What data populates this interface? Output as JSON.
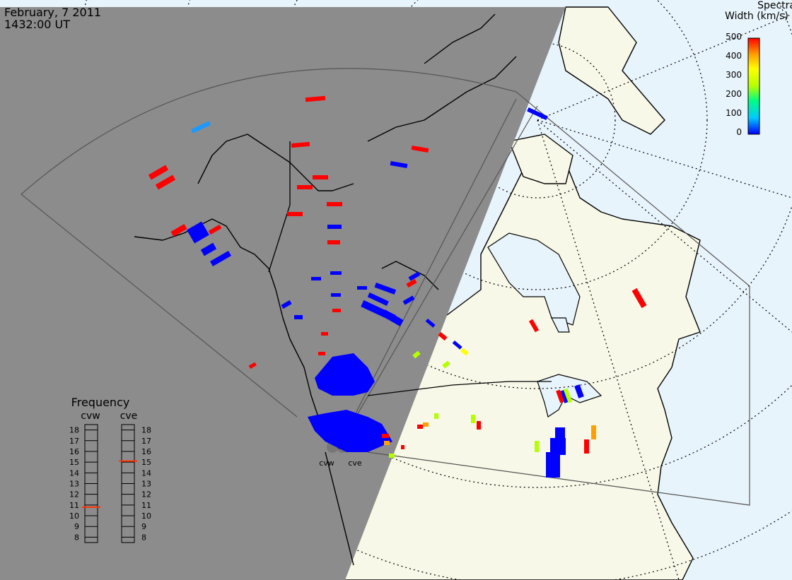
{
  "header": {
    "date": "February, 7 2011",
    "time": "1432:00 UT"
  },
  "colorbar": {
    "title_line1": "Spectral",
    "title_line2": "Width (km/s)",
    "ticks": [
      "500",
      "400",
      "300",
      "200",
      "100",
      "0"
    ],
    "colors": [
      "#0000ff",
      "#00c8ff",
      "#00ff80",
      "#b4ff00",
      "#ffff00",
      "#ffa000",
      "#ff0000"
    ]
  },
  "frequency_panel": {
    "title": "Frequency",
    "left_label": "cvw",
    "right_label": "cve",
    "ticks": [
      "18",
      "17",
      "16",
      "15",
      "14",
      "13",
      "12",
      "11",
      "10",
      "9",
      "8"
    ],
    "cvw_freq_mhz": 10.8,
    "cve_freq_mhz": 15.1,
    "marker_color": "#ff3300"
  },
  "radar_labels": {
    "west": "cvw",
    "east": "cve"
  },
  "colors": {
    "night": "#8c8c8c",
    "day_land": "#f8f8e8",
    "day_ocean": "#e8f4fb",
    "coast": "#000000",
    "blue": "#0000ff",
    "red": "#ff0000",
    "cyan": "#1a99ff",
    "yellowgreen": "#b4ff00",
    "orange": "#ffa000",
    "yellow": "#ffff00"
  }
}
